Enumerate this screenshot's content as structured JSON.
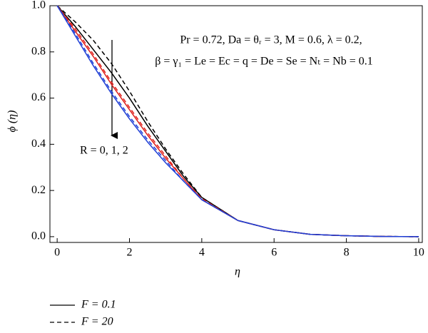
{
  "chart_data": {
    "type": "line",
    "x_label": "η",
    "y_label": "ϕ (η)",
    "x": [
      0,
      0.5,
      1,
      1.5,
      2,
      2.5,
      3,
      3.5,
      4,
      5,
      6,
      7,
      8,
      9,
      10
    ],
    "series": [
      {
        "color": "#000000",
        "dash": "dashed",
        "values": [
          1,
          0.93,
          0.85,
          0.75,
          0.63,
          0.5,
          0.38,
          0.27,
          0.17,
          0.07,
          0.03,
          0.01,
          0.004,
          0.001,
          0
        ]
      },
      {
        "color": "#000000",
        "dash": "solid",
        "values": [
          1,
          0.91,
          0.81,
          0.71,
          0.6,
          0.48,
          0.37,
          0.26,
          0.17,
          0.07,
          0.03,
          0.01,
          0.004,
          0.001,
          0
        ]
      },
      {
        "color": "#e0201b",
        "dash": "dashed",
        "values": [
          1,
          0.9,
          0.79,
          0.67,
          0.56,
          0.45,
          0.35,
          0.25,
          0.165,
          0.07,
          0.03,
          0.01,
          0.004,
          0.001,
          0
        ]
      },
      {
        "color": "#e0201b",
        "dash": "solid",
        "values": [
          1,
          0.89,
          0.78,
          0.66,
          0.55,
          0.44,
          0.34,
          0.25,
          0.16,
          0.07,
          0.03,
          0.01,
          0.004,
          0.001,
          0
        ]
      },
      {
        "color": "#1f3fd6",
        "dash": "dashed",
        "values": [
          1,
          0.88,
          0.75,
          0.63,
          0.52,
          0.42,
          0.33,
          0.24,
          0.16,
          0.07,
          0.03,
          0.01,
          0.004,
          0.001,
          0
        ]
      },
      {
        "color": "#1f3fd6",
        "dash": "solid",
        "values": [
          1,
          0.87,
          0.74,
          0.62,
          0.51,
          0.41,
          0.32,
          0.24,
          0.16,
          0.07,
          0.03,
          0.01,
          0.004,
          0.001,
          0
        ]
      }
    ],
    "legend": [
      {
        "label": "F = 0.1",
        "dash": "solid"
      },
      {
        "label": "F = 20",
        "dash": "dashed"
      }
    ],
    "annotations": [
      "Pr = 0.72, Da = θᵣ = 3, M = 0.6, λ = 0.2,",
      "β = γ₁ = Le = Ec = q = De = Se = Nₜ = Nb = 0.1",
      "R = 0, 1, 2"
    ],
    "xlim": [
      -0.2,
      10.1
    ],
    "ylim": [
      -0.025,
      1.0
    ],
    "xticks": [
      0,
      2,
      4,
      6,
      8,
      10
    ],
    "yticks": [
      {
        "value": 0,
        "label": "0.0"
      },
      0.2,
      0.4,
      0.6,
      0.8,
      {
        "value": 1,
        "label": "1.0"
      }
    ]
  }
}
